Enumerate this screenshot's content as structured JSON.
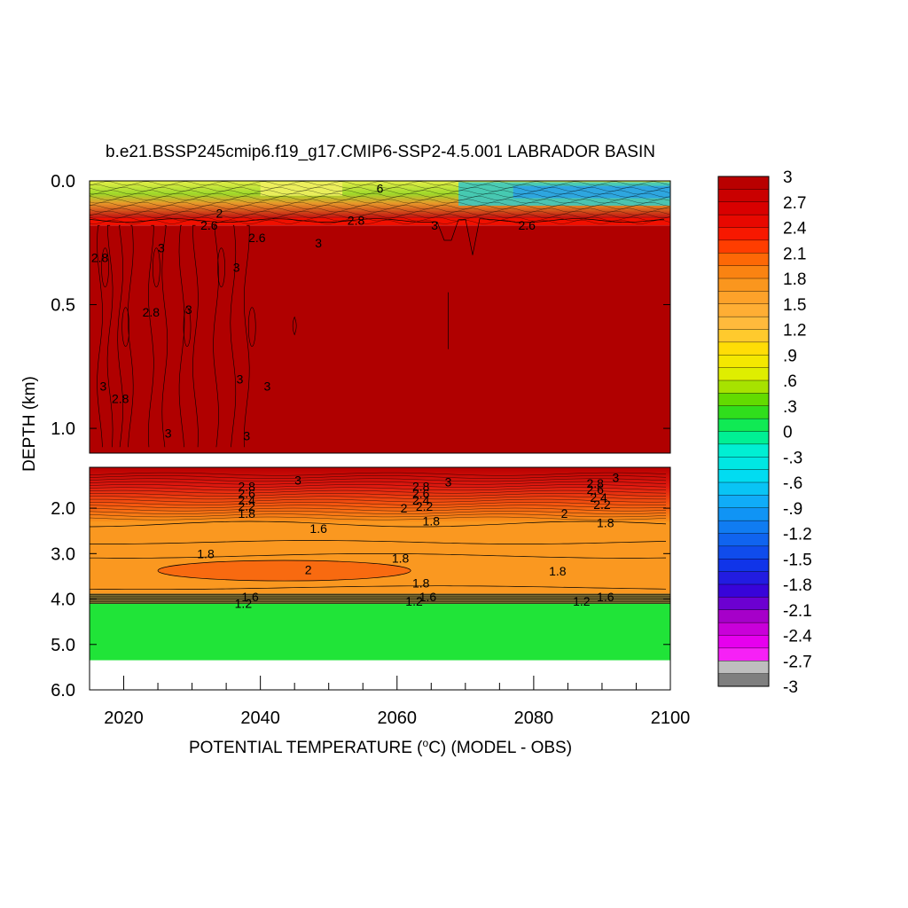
{
  "chart_data": {
    "type": "heatmap",
    "title": "b.e21.BSSP245cmip6.f19_g17.CMIP6-SSP2-4.5.001 LABRADOR BASIN",
    "xlabel_main": "POTENTIAL TEMPERATURE (",
    "xlabel_sup": "o",
    "xlabel_rest": "C) (MODEL - OBS)",
    "ylabel": "DEPTH (km)",
    "x_range": [
      2015,
      2100
    ],
    "x_ticks": [
      2020,
      2040,
      2060,
      2080,
      2100
    ],
    "x_tick_labels": [
      "2020",
      "2040",
      "2060",
      "2080",
      "2100"
    ],
    "upper_panel": {
      "y_range_km": [
        0.0,
        1.1
      ],
      "y_ticks": [
        0.0,
        0.5,
        1.0
      ],
      "y_tick_labels": [
        "0.0",
        "0.5",
        "1.0"
      ],
      "bands": [
        {
          "from": 0.0,
          "to": 0.08,
          "value": 0.9
        },
        {
          "from": 0.08,
          "to": 0.18,
          "value": 2.4
        },
        {
          "from": 0.18,
          "to": 1.1,
          "value": 3.0
        }
      ],
      "contour_labels": [
        {
          "text": "6",
          "x": 2057.5,
          "y": 0.03
        },
        {
          "text": "3",
          "x": 2065.5,
          "y": 0.18
        },
        {
          "text": "3",
          "x": 2048.5,
          "y": 0.25
        },
        {
          "text": "3",
          "x": 2025.5,
          "y": 0.27
        },
        {
          "text": "2.6",
          "x": 2032.5,
          "y": 0.18
        },
        {
          "text": "2",
          "x": 2034,
          "y": 0.13
        },
        {
          "text": "2.8",
          "x": 2016.5,
          "y": 0.31
        },
        {
          "text": "2.8",
          "x": 2024,
          "y": 0.53
        },
        {
          "text": "3",
          "x": 2029.5,
          "y": 0.52
        },
        {
          "text": "3",
          "x": 2036.5,
          "y": 0.35
        },
        {
          "text": "3",
          "x": 2037,
          "y": 0.8
        },
        {
          "text": "3",
          "x": 2041,
          "y": 0.83
        },
        {
          "text": "3",
          "x": 2017,
          "y": 0.83
        },
        {
          "text": "2.8",
          "x": 2019.5,
          "y": 0.88
        },
        {
          "text": "3",
          "x": 2026.5,
          "y": 1.02
        },
        {
          "text": "3",
          "x": 2038,
          "y": 1.03
        },
        {
          "text": "2.6",
          "x": 2039.5,
          "y": 0.23
        },
        {
          "text": "2.8",
          "x": 2054,
          "y": 0.16
        },
        {
          "text": "2.6",
          "x": 2079,
          "y": 0.18
        }
      ]
    },
    "lower_panel": {
      "y_range_km": [
        1.1,
        6.0
      ],
      "y_ticks": [
        2.0,
        3.0,
        4.0,
        5.0,
        6.0
      ],
      "y_tick_labels": [
        "2.0",
        "3.0",
        "4.0",
        "5.0",
        "6.0"
      ],
      "bands": [
        {
          "from": 1.1,
          "to": 1.5,
          "value": 2.6
        },
        {
          "from": 1.5,
          "to": 2.2,
          "value": 2.2
        },
        {
          "from": 2.2,
          "to": 3.9,
          "value": 1.7
        },
        {
          "from": 3.9,
          "to": 4.1,
          "value": 1.0
        },
        {
          "from": 4.1,
          "to": 5.35,
          "value": 0.15
        },
        {
          "from": 5.35,
          "to": 6.0,
          "value": null
        }
      ],
      "warm_blob": {
        "x_from": 2025,
        "x_to": 2062,
        "y_from": 3.15,
        "y_to": 3.6,
        "value": 2.0
      },
      "contour_labels": [
        {
          "text": "3",
          "x": 2045.5,
          "y": 1.38
        },
        {
          "text": "3",
          "x": 2067.5,
          "y": 1.42
        },
        {
          "text": "3",
          "x": 2092,
          "y": 1.32
        },
        {
          "text": "2.8",
          "x": 2038,
          "y": 1.52
        },
        {
          "text": "2.6",
          "x": 2038,
          "y": 1.68
        },
        {
          "text": "2.4",
          "x": 2038,
          "y": 1.82
        },
        {
          "text": "2.2",
          "x": 2038,
          "y": 1.96
        },
        {
          "text": "1.8",
          "x": 2038,
          "y": 2.12
        },
        {
          "text": "2.8",
          "x": 2063.5,
          "y": 1.52
        },
        {
          "text": "2.6",
          "x": 2063.5,
          "y": 1.68
        },
        {
          "text": "2.4",
          "x": 2063.5,
          "y": 1.82
        },
        {
          "text": "2.2",
          "x": 2064,
          "y": 1.96
        },
        {
          "text": "2",
          "x": 2061,
          "y": 2.0
        },
        {
          "text": "1.8",
          "x": 2065,
          "y": 2.28
        },
        {
          "text": "2.8",
          "x": 2089,
          "y": 1.45
        },
        {
          "text": "2.6",
          "x": 2089,
          "y": 1.59
        },
        {
          "text": "2.4",
          "x": 2089.5,
          "y": 1.76
        },
        {
          "text": "2.2",
          "x": 2090,
          "y": 1.92
        },
        {
          "text": "2",
          "x": 2084.5,
          "y": 2.12
        },
        {
          "text": "1.8",
          "x": 2090.5,
          "y": 2.32
        },
        {
          "text": "1.6",
          "x": 2048.5,
          "y": 2.45
        },
        {
          "text": "1.8",
          "x": 2032,
          "y": 3.0
        },
        {
          "text": "1.8",
          "x": 2060.5,
          "y": 3.1
        },
        {
          "text": "2",
          "x": 2047,
          "y": 3.35
        },
        {
          "text": "1.8",
          "x": 2063.5,
          "y": 3.65
        },
        {
          "text": "1.8",
          "x": 2083.5,
          "y": 3.38
        },
        {
          "text": "1.6",
          "x": 2038.5,
          "y": 3.95
        },
        {
          "text": "1.2",
          "x": 2037.5,
          "y": 4.1
        },
        {
          "text": "1.6",
          "x": 2064.5,
          "y": 3.95
        },
        {
          "text": "1.2",
          "x": 2062.5,
          "y": 4.05
        },
        {
          "text": "1.6",
          "x": 2090.5,
          "y": 3.95
        },
        {
          "text": "1.2",
          "x": 2087,
          "y": 4.05
        }
      ]
    },
    "colorbar": {
      "min": -3,
      "max": 3,
      "step": 0.15,
      "tick_labels": [
        "3",
        "2.7",
        "2.4",
        "2.1",
        "1.8",
        "1.5",
        "1.2",
        ".9",
        ".6",
        ".3",
        "0",
        "-.3",
        "-.6",
        "-.9",
        "-1.2",
        "-1.5",
        "-1.8",
        "-2.1",
        "-2.4",
        "-2.7",
        "-3"
      ],
      "tick_values": [
        3,
        2.7,
        2.4,
        2.1,
        1.8,
        1.5,
        1.2,
        0.9,
        0.6,
        0.3,
        0,
        -0.3,
        -0.6,
        -0.9,
        -1.2,
        -1.5,
        -1.8,
        -2.1,
        -2.4,
        -2.7,
        -3
      ]
    }
  }
}
